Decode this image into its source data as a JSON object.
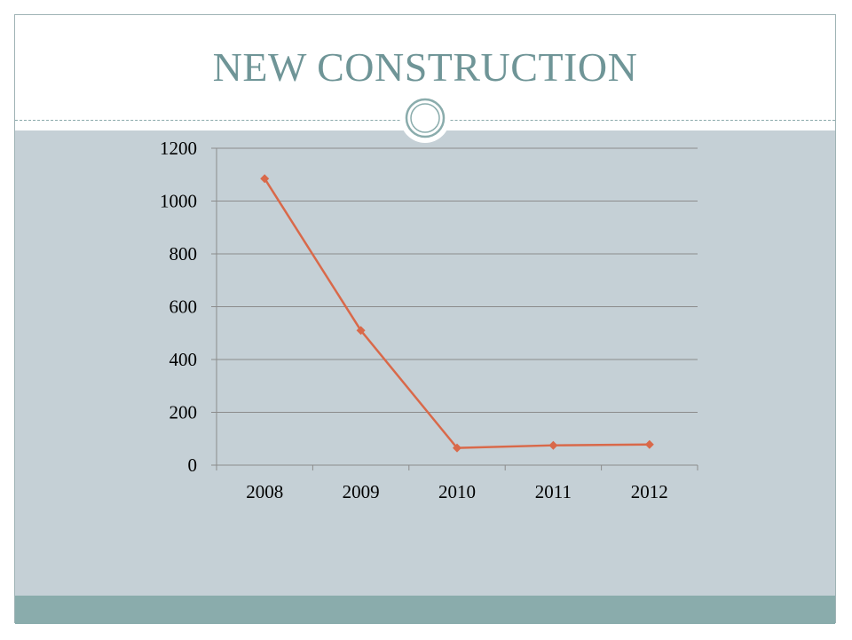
{
  "slide": {
    "title": "NEW CONSTRUCTION"
  },
  "colors": {
    "title": "#6f9597",
    "content_background": "#c5d0d6",
    "footer_band": "#8aacac",
    "series_line": "#d9694a",
    "gridline": "#8c8c8c"
  },
  "chart_data": {
    "type": "line",
    "title": "",
    "xlabel": "",
    "ylabel": "",
    "categories": [
      "2008",
      "2009",
      "2010",
      "2011",
      "2012"
    ],
    "series": [
      {
        "values": [
          1085,
          510,
          65,
          75,
          78
        ]
      }
    ],
    "ylim": [
      0,
      1200
    ],
    "yticks": [
      "0",
      "200",
      "400",
      "600",
      "800",
      "1000",
      "1200"
    ],
    "grid": true,
    "legend": "none"
  }
}
